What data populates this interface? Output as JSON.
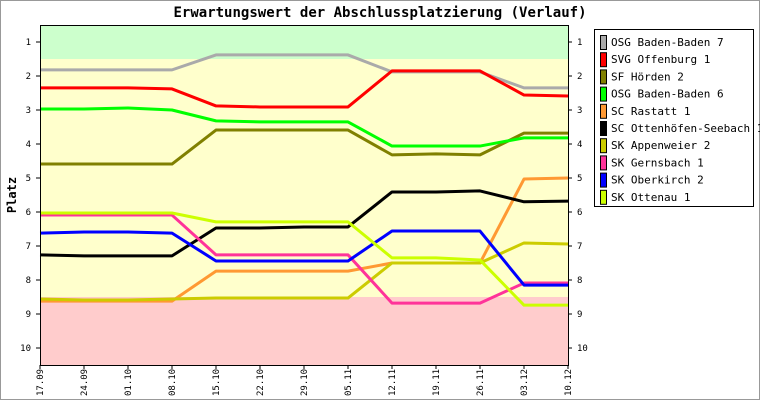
{
  "chart_data": {
    "type": "line",
    "title": "Erwartungswert der Abschlussplatzierung (Verlauf)",
    "ylabel": "Platz",
    "xlabel": "",
    "ylim": [
      0.5,
      10.5
    ],
    "y_inverted": true,
    "y_ticks": [
      "1",
      "2",
      "3",
      "4",
      "5",
      "6",
      "7",
      "8",
      "9",
      "10"
    ],
    "categories": [
      "17.09",
      "24.09",
      "01.10",
      "08.10",
      "15.10",
      "22.10",
      "29.10",
      "05.11",
      "12.11",
      "19.11",
      "26.11",
      "03.12",
      "10.12"
    ],
    "zones": [
      {
        "from": 0.5,
        "to": 1.5,
        "color": "#ccffcc"
      },
      {
        "from": 1.5,
        "to": 8.5,
        "color": "#ffffcc"
      },
      {
        "from": 8.5,
        "to": 10.5,
        "color": "#ffcccc"
      }
    ],
    "legend_position": "right",
    "series": [
      {
        "name": "OSG Baden-Baden 7",
        "color": "#aaaaaa",
        "values": [
          1.82,
          1.82,
          1.82,
          1.82,
          1.38,
          1.38,
          1.38,
          1.38,
          1.88,
          1.88,
          1.88,
          2.35,
          2.35
        ]
      },
      {
        "name": "SVG Offenburg 1",
        "color": "#ff0000",
        "values": [
          2.35,
          2.35,
          2.35,
          2.38,
          2.88,
          2.91,
          2.91,
          2.91,
          1.85,
          1.85,
          1.85,
          2.56,
          2.59
        ]
      },
      {
        "name": "SF Hörden 2",
        "color": "#808000",
        "values": [
          4.59,
          4.59,
          4.59,
          4.59,
          3.59,
          3.59,
          3.59,
          3.59,
          4.32,
          4.29,
          4.32,
          3.68,
          3.68
        ]
      },
      {
        "name": "OSG Baden-Baden 6",
        "color": "#00ff00",
        "values": [
          2.97,
          2.97,
          2.94,
          3.0,
          3.32,
          3.35,
          3.35,
          3.35,
          4.06,
          4.06,
          4.06,
          3.82,
          3.82
        ]
      },
      {
        "name": "SC Rastatt 1",
        "color": "#ff9933",
        "values": [
          8.62,
          8.62,
          8.62,
          8.62,
          7.74,
          7.74,
          7.74,
          7.74,
          7.5,
          7.5,
          7.5,
          5.03,
          5.0
        ]
      },
      {
        "name": "SC Ottenhöfen-Seebach 1",
        "color": "#000000",
        "values": [
          7.26,
          7.29,
          7.29,
          7.29,
          6.47,
          6.47,
          6.44,
          6.44,
          5.41,
          5.41,
          5.38,
          5.7,
          5.68
        ]
      },
      {
        "name": "SK Appenweier 2",
        "color": "#cccc00",
        "values": [
          8.56,
          8.59,
          8.59,
          8.56,
          8.53,
          8.53,
          8.53,
          8.53,
          7.5,
          7.5,
          7.5,
          6.91,
          6.94
        ]
      },
      {
        "name": "SK Gernsbach 1",
        "color": "#ff3399",
        "values": [
          6.09,
          6.09,
          6.09,
          6.09,
          7.26,
          7.26,
          7.26,
          7.26,
          8.68,
          8.68,
          8.68,
          8.09,
          8.09
        ]
      },
      {
        "name": "SK Oberkirch 2",
        "color": "#0000ff",
        "values": [
          6.62,
          6.59,
          6.59,
          6.62,
          7.44,
          7.44,
          7.44,
          7.44,
          6.56,
          6.56,
          6.56,
          8.15,
          8.15
        ]
      },
      {
        "name": "SK Ottenau 1",
        "color": "#ccff00",
        "values": [
          6.03,
          6.03,
          6.03,
          6.03,
          6.29,
          6.29,
          6.29,
          6.29,
          7.35,
          7.35,
          7.41,
          8.74,
          8.74
        ]
      }
    ]
  }
}
